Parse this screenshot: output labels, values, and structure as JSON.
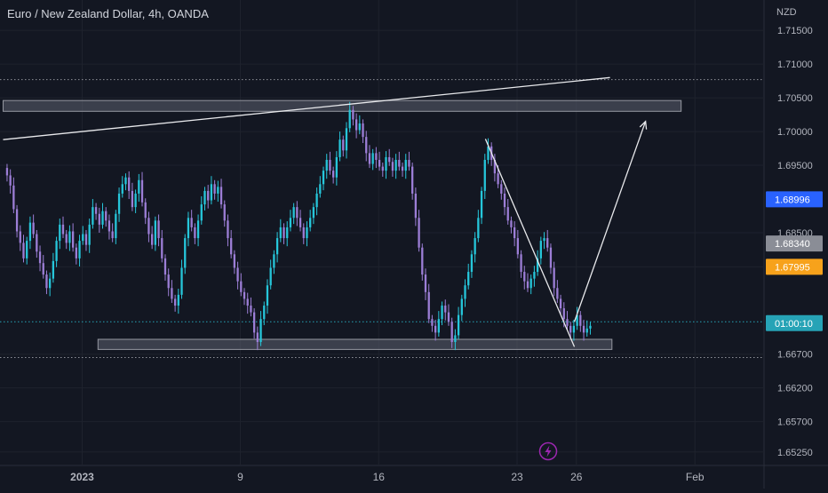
{
  "header": {
    "title": "Euro / New Zealand Dollar, 4h, OANDA",
    "currency": "NZD"
  },
  "chart_data": {
    "type": "candlestick",
    "title": "Euro / New Zealand Dollar, 4h, OANDA",
    "ylabel": "NZD",
    "ylim": [
      1.6505,
      1.7195
    ],
    "y_ticks": [
      "1.71500",
      "1.71000",
      "1.70500",
      "1.70000",
      "1.69500",
      "1.68500",
      "1.67995",
      "1.66700",
      "1.66200",
      "1.65700",
      "1.65250"
    ],
    "y_tick_values": [
      1.715,
      1.71,
      1.705,
      1.7,
      1.695,
      1.685,
      1.67995,
      1.667,
      1.662,
      1.657,
      1.6525
    ],
    "x_ticks": [
      "2023",
      "9",
      "16",
      "23",
      "26",
      "Feb"
    ],
    "x_tick_days": [
      0,
      8,
      15,
      22,
      25,
      31
    ],
    "price_labels": [
      {
        "text": "1.68996",
        "value": 1.68996,
        "color": "#2962ff"
      },
      {
        "text": "1.68340",
        "value": 1.6834,
        "color": "#8a8d96"
      },
      {
        "text": "1.67995",
        "value": 1.67995,
        "color": "#f7a21b"
      },
      {
        "text": "01:00:10",
        "value": 1.6716,
        "color": "#26a3b6"
      }
    ],
    "horizontal_levels": [
      1.7077,
      1.6665,
      1.6718
    ],
    "zones": [
      {
        "day_start": -4,
        "day_end": 30.3,
        "y_top": 1.7046,
        "y_bottom": 1.703
      },
      {
        "day_start": 0.8,
        "day_end": 26.8,
        "y_top": 1.6692,
        "y_bottom": 1.6677
      }
    ],
    "trendlines": [
      {
        "x1": -4,
        "y1": 1.6988,
        "x2": 26.7,
        "y2": 1.708
      },
      {
        "x1": 20.4,
        "y1": 1.6989,
        "x2": 24.9,
        "y2": 1.6681
      }
    ],
    "arrow": {
      "x1": 24.9,
      "y1": 1.6718,
      "x2": 28.5,
      "y2": 1.7015
    },
    "candles": {
      "start_day": -3.8,
      "interval_days": 0.1667,
      "start_price": 1.6946,
      "closes": [
        1.6935,
        1.692,
        1.6885,
        1.6852,
        1.6835,
        1.6812,
        1.6838,
        1.6865,
        1.6848,
        1.6822,
        1.6805,
        1.6788,
        1.6768,
        1.6782,
        1.6808,
        1.6838,
        1.6862,
        1.6848,
        1.6835,
        1.6852,
        1.6828,
        1.6812,
        1.6838,
        1.6848,
        1.6832,
        1.6862,
        1.6888,
        1.6878,
        1.6862,
        1.6882,
        1.6868,
        1.6852,
        1.6842,
        1.6878,
        1.6908,
        1.6922,
        1.6932,
        1.6912,
        1.6888,
        1.6908,
        1.6928,
        1.6895,
        1.6872,
        1.6848,
        1.6832,
        1.6868,
        1.6842,
        1.6812,
        1.6788,
        1.6768,
        1.6752,
        1.6742,
        1.6758,
        1.6798,
        1.6842,
        1.6872,
        1.6858,
        1.6842,
        1.6868,
        1.6892,
        1.6912,
        1.6898,
        1.6922,
        1.6908,
        1.6918,
        1.6892,
        1.6868,
        1.6842,
        1.6818,
        1.6798,
        1.6778,
        1.6762,
        1.6752,
        1.6742,
        1.6732,
        1.6702,
        1.6688,
        1.6722,
        1.6742,
        1.6772,
        1.6798,
        1.6818,
        1.6842,
        1.6858,
        1.6842,
        1.6858,
        1.6872,
        1.6888,
        1.6872,
        1.6858,
        1.6842,
        1.6858,
        1.6872,
        1.6888,
        1.6908,
        1.6922,
        1.6942,
        1.6958,
        1.6942,
        1.6932,
        1.6962,
        1.6988,
        1.6972,
        1.7005,
        1.7032,
        1.7018,
        1.7002,
        1.7012,
        1.6992,
        1.6968,
        1.6952,
        1.6968,
        1.6958,
        1.6948,
        1.6942,
        1.6962,
        1.6955,
        1.6942,
        1.6958,
        1.6948,
        1.6942,
        1.6958,
        1.6948,
        1.6908,
        1.6872,
        1.6828,
        1.6788,
        1.6762,
        1.6722,
        1.6712,
        1.6702,
        1.6722,
        1.6742,
        1.6732,
        1.6718,
        1.6688,
        1.6698,
        1.6728,
        1.6752,
        1.6772,
        1.6792,
        1.6818,
        1.6842,
        1.6872,
        1.6912,
        1.6958,
        1.6978,
        1.6958,
        1.6938,
        1.6922,
        1.6908,
        1.6888,
        1.6868,
        1.6858,
        1.6842,
        1.6818,
        1.6792,
        1.6778,
        1.6768,
        1.6782,
        1.6792,
        1.6812,
        1.6838,
        1.6842,
        1.6828,
        1.6798,
        1.6768,
        1.6752,
        1.6738,
        1.6722,
        1.6712,
        1.6702,
        1.6712,
        1.6728,
        1.6712,
        1.6702,
        1.6708,
        1.6712
      ]
    },
    "colors": {
      "up": "#26c6da",
      "down": "#9c7ed6",
      "grid": "#1e222d",
      "zone_fill": "#5d6170",
      "zone_stroke": "#9598a1",
      "trendline": "#e8e9ec",
      "text": "#b2b5be",
      "level": "#8f9199",
      "current_price_line": "#26a3b6",
      "flash_icon": "#9c27b0"
    }
  }
}
